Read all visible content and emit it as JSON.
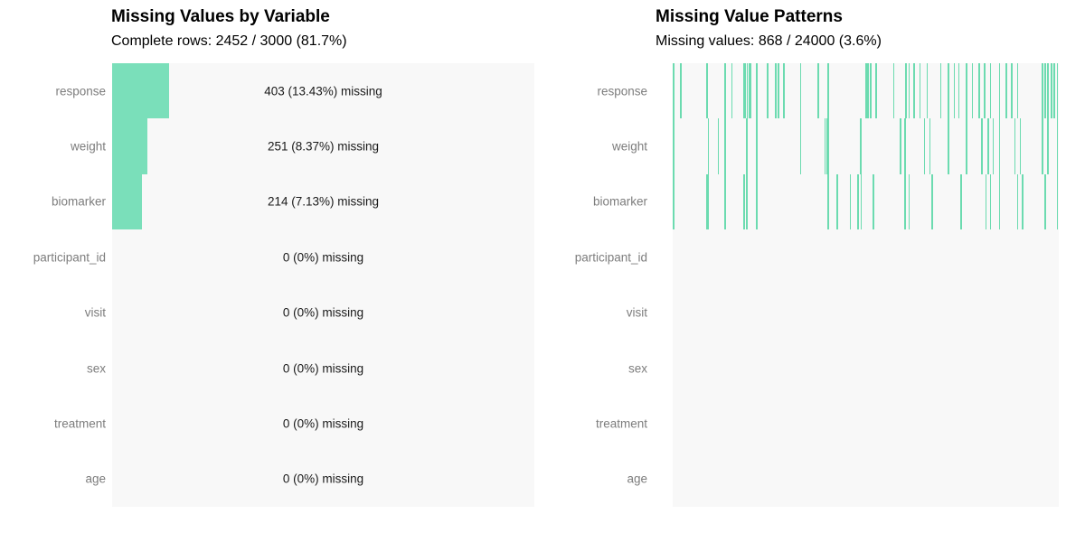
{
  "colors": {
    "accent_bar": "#7adfba",
    "accent_tick": "#6cdbb0",
    "plot_background": "#f8f8f8",
    "page_background": "#ffffff",
    "axis_label": "#7d7d7d",
    "annotation_text": "#1a1a1a",
    "title_text": "#000000"
  },
  "chart_data": [
    {
      "type": "bar",
      "orientation": "horizontal",
      "title": "Missing Values by Variable",
      "subtitle": "Complete rows: 2452 / 3000 (81.7%)",
      "complete_rows": 2452,
      "total_rows": 3000,
      "complete_pct": 81.7,
      "categories": [
        "response",
        "weight",
        "biomarker",
        "participant_id",
        "visit",
        "sex",
        "treatment",
        "age"
      ],
      "missing_count": [
        403,
        251,
        214,
        0,
        0,
        0,
        0,
        0
      ],
      "missing_pct": [
        13.43,
        8.37,
        7.13,
        0,
        0,
        0,
        0,
        0
      ],
      "bar_labels": [
        "403 (13.43%) missing",
        "251 (8.37%) missing",
        "214 (7.13%) missing",
        "0 (0%) missing",
        "0 (0%) missing",
        "0 (0%) missing",
        "0 (0%) missing",
        "0 (0%) missing"
      ],
      "xlim_pct": [
        0,
        100
      ],
      "grid": false,
      "legend": false
    },
    {
      "type": "heatmap",
      "title": "Missing Value Patterns",
      "subtitle": "Missing values: 868 / 24000 (3.6%)",
      "missing_cells": 868,
      "total_cells": 24000,
      "missing_cells_pct": 3.6,
      "categories": [
        "response",
        "weight",
        "biomarker",
        "participant_id",
        "visit",
        "sex",
        "treatment",
        "age"
      ],
      "grid": false,
      "legend": false,
      "tick_positions_pct": {
        "response": [
          0.1,
          1.9,
          8.7,
          13.4,
          15.2,
          18.3,
          18.7,
          19.2,
          19.7,
          20.1,
          21.6,
          24.4,
          26.5,
          27.2,
          28.6,
          33.0,
          37.5,
          40.1,
          49.9,
          50.4,
          51.1,
          52.5,
          57.1,
          60.2,
          61.1,
          62.3,
          63.9,
          65.8,
          69.3,
          71.2,
          72.8,
          74.0,
          75.9,
          77.5,
          79.2,
          80.6,
          82.2,
          84.5,
          86.2,
          87.6,
          89.2,
          95.6,
          96.3,
          97.0,
          97.9,
          98.6,
          99.5
        ],
        "weight": [
          0.1,
          9.1,
          11.7,
          13.4,
          19.0,
          21.6,
          33.0,
          39.3,
          39.7,
          40.1,
          48.5,
          58.8,
          60.0,
          65.1,
          66.5,
          71.2,
          75.9,
          79.9,
          81.5,
          82.9,
          84.5,
          88.5,
          89.9,
          95.6,
          97.0,
          99.5
        ],
        "biomarker": [
          0.1,
          8.7,
          9.1,
          13.4,
          18.3,
          19.0,
          21.6,
          40.1,
          42.4,
          45.9,
          47.8,
          48.7,
          51.8,
          60.0,
          61.1,
          67.0,
          74.5,
          81.0,
          82.2,
          84.5,
          89.2,
          90.4,
          96.3,
          99.5
        ],
        "participant_id": [],
        "visit": [],
        "sex": [],
        "treatment": [],
        "age": []
      }
    }
  ]
}
